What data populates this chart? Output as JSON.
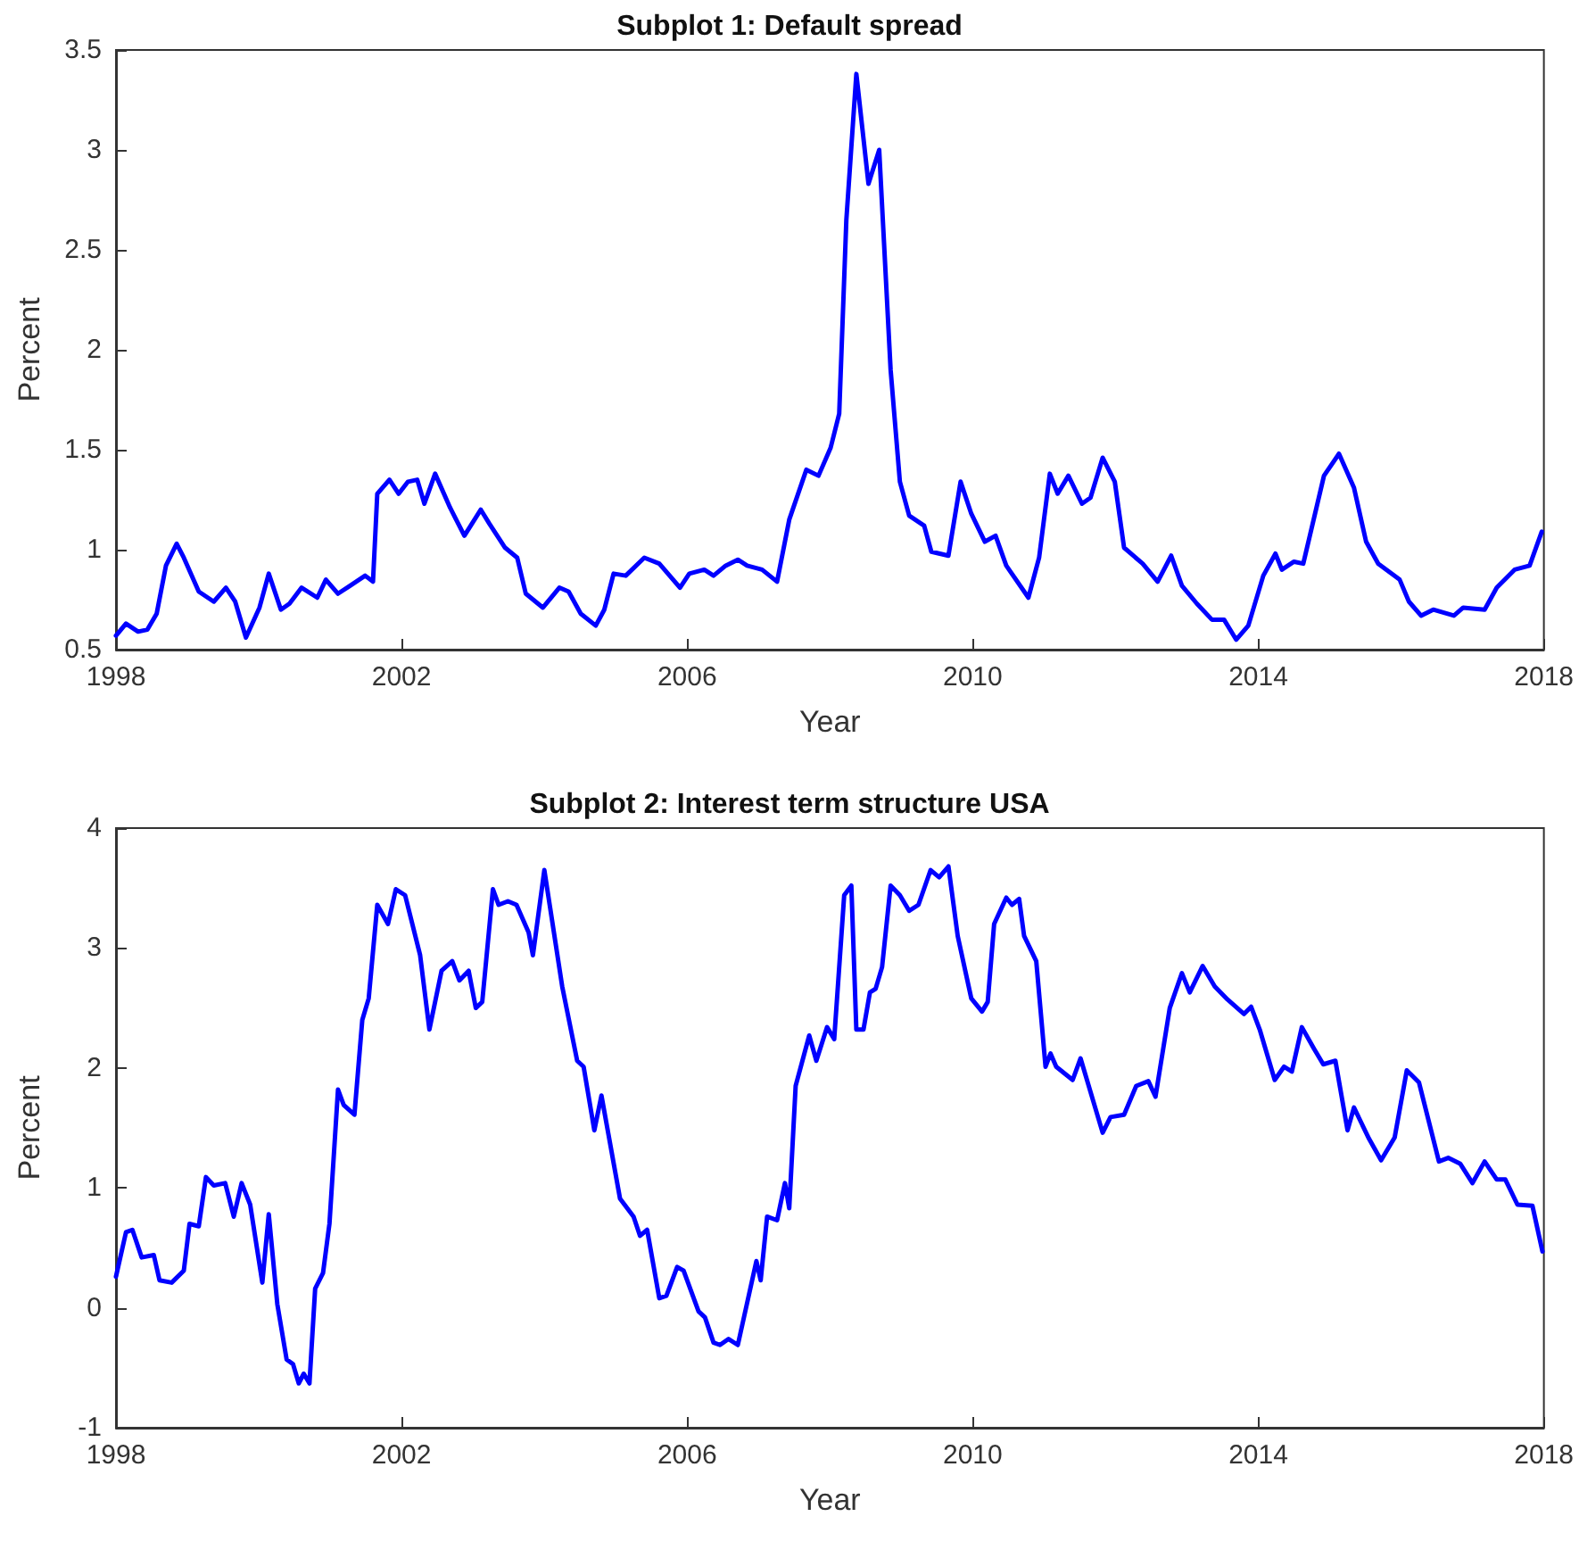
{
  "chart_data": [
    {
      "type": "line",
      "title": "Subplot 1: Default spread",
      "xlabel": "Year",
      "ylabel": "Percent",
      "color": "#0000ff",
      "xlim": [
        1998,
        2018
      ],
      "xticks": [
        1998,
        2002,
        2006,
        2010,
        2014,
        2018
      ],
      "ylim": [
        0.5,
        3.5
      ],
      "yticks": [
        0.5,
        1,
        1.5,
        2,
        2.5,
        3,
        3.5
      ],
      "x": [
        1998.0,
        1998.14,
        1998.31,
        1998.44,
        1998.57,
        1998.7,
        1998.85,
        1998.95,
        1999.16,
        1999.37,
        1999.54,
        1999.67,
        1999.82,
        2000.01,
        2000.14,
        2000.31,
        2000.43,
        2000.6,
        2000.82,
        2000.94,
        2001.11,
        2001.28,
        2001.49,
        2001.6,
        2001.66,
        2001.83,
        2001.96,
        2002.09,
        2002.22,
        2002.32,
        2002.47,
        2002.68,
        2002.88,
        2003.11,
        2003.23,
        2003.45,
        2003.62,
        2003.74,
        2003.98,
        2004.21,
        2004.34,
        2004.51,
        2004.72,
        2004.84,
        2004.97,
        2005.14,
        2005.4,
        2005.61,
        2005.9,
        2006.03,
        2006.24,
        2006.37,
        2006.54,
        2006.71,
        2006.84,
        2007.05,
        2007.26,
        2007.43,
        2007.67,
        2007.84,
        2008.01,
        2008.13,
        2008.23,
        2008.37,
        2008.54,
        2008.69,
        2008.85,
        2008.98,
        2009.11,
        2009.32,
        2009.42,
        2009.66,
        2009.83,
        2009.98,
        2010.17,
        2010.32,
        2010.47,
        2010.78,
        2010.93,
        2011.08,
        2011.19,
        2011.34,
        2011.53,
        2011.65,
        2011.82,
        2011.99,
        2012.12,
        2012.38,
        2012.59,
        2012.78,
        2012.93,
        2013.14,
        2013.35,
        2013.52,
        2013.69,
        2013.86,
        2014.07,
        2014.24,
        2014.33,
        2014.5,
        2014.63,
        2014.92,
        2015.13,
        2015.34,
        2015.51,
        2015.68,
        2015.98,
        2016.11,
        2016.28,
        2016.45,
        2016.74,
        2016.87,
        2017.17,
        2017.34,
        2017.59,
        2017.8,
        2017.97
      ],
      "values": [
        0.57,
        0.63,
        0.59,
        0.6,
        0.68,
        0.92,
        1.03,
        0.96,
        0.79,
        0.74,
        0.81,
        0.74,
        0.56,
        0.71,
        0.88,
        0.7,
        0.73,
        0.81,
        0.76,
        0.85,
        0.78,
        0.82,
        0.87,
        0.84,
        1.28,
        1.35,
        1.28,
        1.34,
        1.35,
        1.23,
        1.38,
        1.21,
        1.07,
        1.2,
        1.13,
        1.01,
        0.96,
        0.78,
        0.71,
        0.81,
        0.79,
        0.68,
        0.62,
        0.7,
        0.88,
        0.87,
        0.96,
        0.93,
        0.81,
        0.88,
        0.9,
        0.87,
        0.92,
        0.95,
        0.92,
        0.9,
        0.84,
        1.15,
        1.4,
        1.37,
        1.51,
        1.68,
        2.65,
        3.38,
        2.83,
        3.0,
        1.9,
        1.34,
        1.17,
        1.12,
        0.99,
        0.97,
        1.34,
        1.18,
        1.04,
        1.07,
        0.92,
        0.76,
        0.96,
        1.38,
        1.28,
        1.37,
        1.23,
        1.26,
        1.46,
        1.34,
        1.01,
        0.93,
        0.84,
        0.97,
        0.82,
        0.73,
        0.65,
        0.65,
        0.55,
        0.62,
        0.87,
        0.98,
        0.9,
        0.94,
        0.93,
        1.37,
        1.48,
        1.31,
        1.04,
        0.93,
        0.85,
        0.74,
        0.67,
        0.7,
        0.67,
        0.71,
        0.7,
        0.81,
        0.9,
        0.92,
        1.09
      ]
    },
    {
      "type": "line",
      "title": "Subplot 2: Interest term structure USA",
      "xlabel": "Year",
      "ylabel": "Percent",
      "color": "#0000ff",
      "xlim": [
        1998,
        2018
      ],
      "xticks": [
        1998,
        2002,
        2006,
        2010,
        2014,
        2018
      ],
      "ylim": [
        -1,
        4
      ],
      "yticks": [
        -1,
        0,
        1,
        2,
        3,
        4
      ],
      "x": [
        1998.0,
        1998.14,
        1998.23,
        1998.36,
        1998.53,
        1998.61,
        1998.78,
        1998.95,
        1999.03,
        1999.16,
        1999.26,
        1999.37,
        1999.53,
        1999.65,
        1999.76,
        1999.88,
        2000.05,
        2000.14,
        2000.26,
        2000.39,
        2000.48,
        2000.56,
        2000.63,
        2000.71,
        2000.79,
        2000.9,
        2000.99,
        2001.11,
        2001.19,
        2001.34,
        2001.45,
        2001.54,
        2001.66,
        2001.81,
        2001.92,
        2002.05,
        2002.26,
        2002.39,
        2002.56,
        2002.71,
        2002.81,
        2002.94,
        2003.04,
        2003.13,
        2003.28,
        2003.36,
        2003.49,
        2003.61,
        2003.78,
        2003.84,
        2004.0,
        2004.25,
        2004.46,
        2004.55,
        2004.7,
        2004.8,
        2005.06,
        2005.25,
        2005.34,
        2005.44,
        2005.61,
        2005.71,
        2005.86,
        2005.95,
        2006.16,
        2006.25,
        2006.37,
        2006.46,
        2006.58,
        2006.71,
        2006.97,
        2007.03,
        2007.12,
        2007.26,
        2007.37,
        2007.43,
        2007.52,
        2007.71,
        2007.81,
        2007.96,
        2008.06,
        2008.2,
        2008.3,
        2008.37,
        2008.47,
        2008.56,
        2008.64,
        2008.73,
        2008.85,
        2008.98,
        2009.11,
        2009.24,
        2009.41,
        2009.53,
        2009.66,
        2009.79,
        2009.98,
        2010.13,
        2010.21,
        2010.3,
        2010.47,
        2010.55,
        2010.65,
        2010.72,
        2010.89,
        2011.02,
        2011.09,
        2011.17,
        2011.4,
        2011.51,
        2011.82,
        2011.93,
        2012.12,
        2012.29,
        2012.46,
        2012.56,
        2012.76,
        2012.93,
        2013.04,
        2013.22,
        2013.39,
        2013.57,
        2013.8,
        2013.9,
        2014.02,
        2014.23,
        2014.36,
        2014.47,
        2014.61,
        2014.78,
        2014.91,
        2015.08,
        2015.25,
        2015.34,
        2015.55,
        2015.72,
        2015.91,
        2016.08,
        2016.25,
        2016.53,
        2016.66,
        2016.83,
        2017.0,
        2017.17,
        2017.34,
        2017.46,
        2017.63,
        2017.84,
        2017.98
      ],
      "values": [
        0.26,
        0.63,
        0.65,
        0.42,
        0.44,
        0.23,
        0.21,
        0.31,
        0.7,
        0.68,
        1.09,
        1.02,
        1.04,
        0.76,
        1.04,
        0.86,
        0.21,
        0.78,
        0.03,
        -0.43,
        -0.47,
        -0.63,
        -0.55,
        -0.63,
        0.16,
        0.29,
        0.7,
        1.82,
        1.69,
        1.61,
        2.4,
        2.58,
        3.36,
        3.2,
        3.49,
        3.44,
        2.94,
        2.32,
        2.81,
        2.89,
        2.73,
        2.81,
        2.5,
        2.55,
        3.49,
        3.36,
        3.39,
        3.36,
        3.13,
        2.94,
        3.65,
        2.68,
        2.06,
        2.01,
        1.48,
        1.77,
        0.91,
        0.76,
        0.6,
        0.65,
        0.08,
        0.1,
        0.34,
        0.31,
        -0.03,
        -0.08,
        -0.29,
        -0.31,
        -0.26,
        -0.31,
        0.39,
        0.23,
        0.76,
        0.73,
        1.04,
        0.83,
        1.85,
        2.27,
        2.06,
        2.34,
        2.24,
        3.44,
        3.52,
        2.32,
        2.32,
        2.63,
        2.66,
        2.84,
        3.52,
        3.44,
        3.31,
        3.36,
        3.65,
        3.59,
        3.68,
        3.1,
        2.58,
        2.47,
        2.55,
        3.2,
        3.42,
        3.36,
        3.41,
        3.1,
        2.89,
        2.01,
        2.12,
        2.01,
        1.9,
        2.08,
        1.46,
        1.59,
        1.61,
        1.85,
        1.89,
        1.76,
        2.5,
        2.79,
        2.63,
        2.85,
        2.68,
        2.57,
        2.45,
        2.51,
        2.32,
        1.9,
        2.01,
        1.97,
        2.34,
        2.16,
        2.03,
        2.06,
        1.48,
        1.67,
        1.41,
        1.23,
        1.42,
        1.98,
        1.88,
        1.22,
        1.25,
        1.2,
        1.04,
        1.22,
        1.07,
        1.07,
        0.86,
        0.85,
        0.47
      ]
    }
  ]
}
